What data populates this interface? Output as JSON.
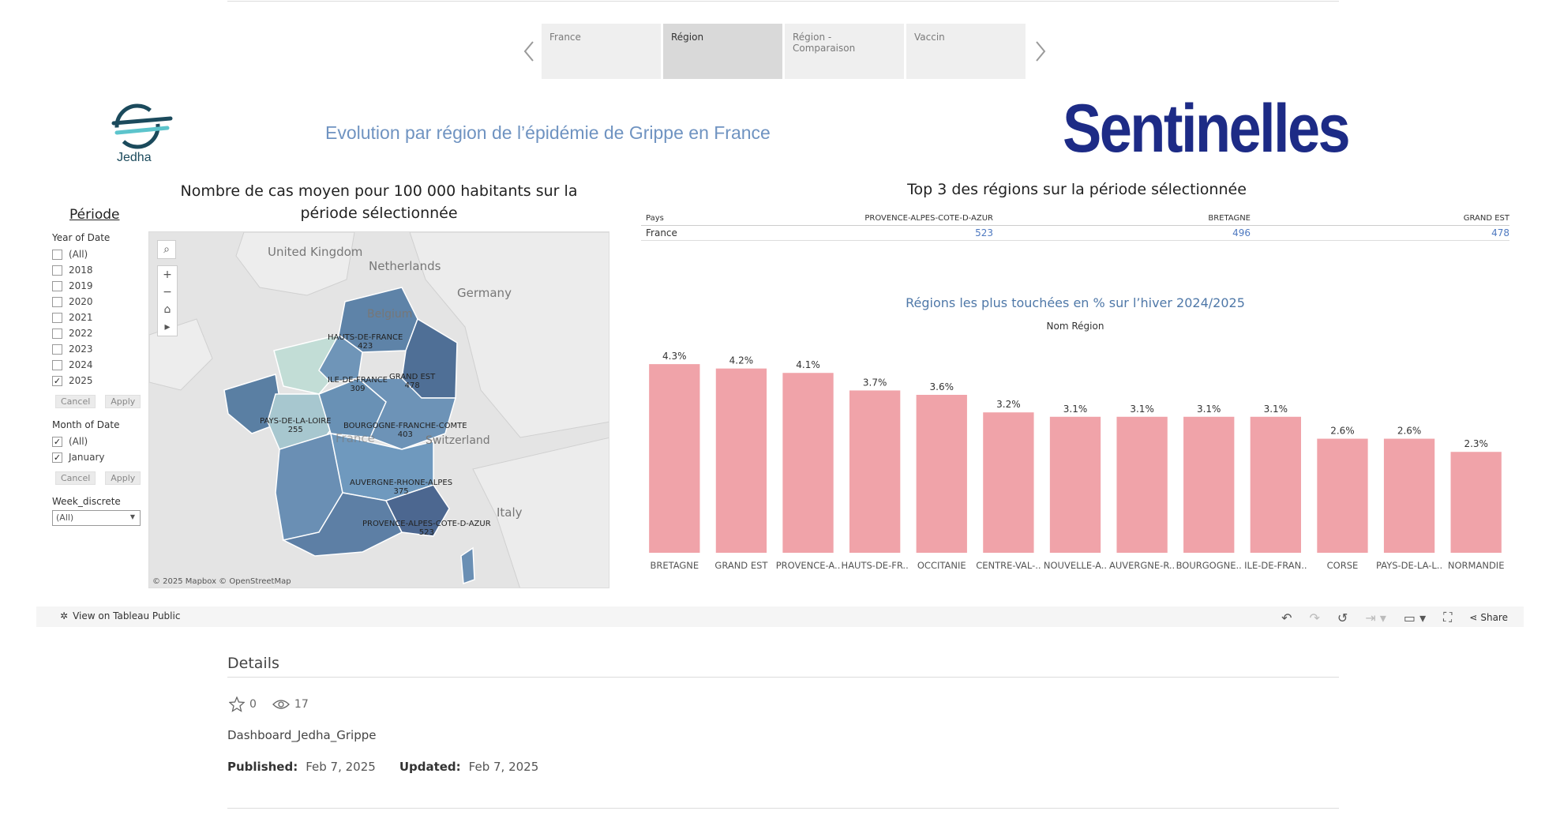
{
  "tabs": [
    {
      "label": "France"
    },
    {
      "label": "Région"
    },
    {
      "label": "Région - Comparaison"
    },
    {
      "label": "Vaccin"
    }
  ],
  "header": {
    "jedha_label": "Jedha",
    "title": "Evolution par région de l’épidémie de Grippe en France",
    "sentinelles_logo": "Sentinelles"
  },
  "filters": {
    "title": "Période",
    "year_label": "Year of Date",
    "years": [
      {
        "label": "(All)",
        "checked": false
      },
      {
        "label": "2018",
        "checked": false
      },
      {
        "label": "2019",
        "checked": false
      },
      {
        "label": "2020",
        "checked": false
      },
      {
        "label": "2021",
        "checked": false
      },
      {
        "label": "2022",
        "checked": false
      },
      {
        "label": "2023",
        "checked": false
      },
      {
        "label": "2024",
        "checked": false
      },
      {
        "label": "2025",
        "checked": true
      }
    ],
    "cancel": "Cancel",
    "apply": "Apply",
    "month_label": "Month of Date",
    "months": [
      {
        "label": "(All)",
        "checked": true
      },
      {
        "label": "January",
        "checked": true
      }
    ],
    "week_label": "Week_discrete",
    "week_value": "(All)"
  },
  "map": {
    "title": "Nombre de cas moyen pour 100 000 habitants sur la période sélectionnée",
    "countries": [
      "United Kingdom",
      "Netherlands",
      "Germany",
      "Belgium",
      "Switzerland",
      "Italy",
      "France"
    ],
    "regions": [
      {
        "name": "HAUTS-DE-FRANCE",
        "value": "423"
      },
      {
        "name": "GRAND EST",
        "value": "478"
      },
      {
        "name": "ILE-DE-FRANCE",
        "value": "309"
      },
      {
        "name": "PAYS-DE-LA-LOIRE",
        "value": "255"
      },
      {
        "name": "BOURGOGNE-FRANCHE-COMTE",
        "value": "403"
      },
      {
        "name": "AUVERGNE-RHONE-ALPES",
        "value": "375"
      },
      {
        "name": "PROVENCE-ALPES-COTE-D-AZUR",
        "value": "523"
      }
    ],
    "attribution": "© 2025 Mapbox  © OpenStreetMap"
  },
  "top3": {
    "title": "Top 3 des régions sur la période sélectionnée",
    "header": [
      "Pays",
      "PROVENCE-ALPES-COTE-D-AZUR",
      "BRETAGNE",
      "GRAND EST"
    ],
    "row": [
      "France",
      "523",
      "496",
      "478"
    ]
  },
  "chart_data": {
    "type": "bar",
    "title": "Régions les plus touchées en % sur l’hiver 2024/2025",
    "xlabel": "Nom Région",
    "categories": [
      "BRETAGNE",
      "GRAND EST",
      "PROVENCE-A..",
      "HAUTS-DE-FR..",
      "OCCITANIE",
      "CENTRE-VAL-..",
      "NOUVELLE-A..",
      "AUVERGNE-R..",
      "BOURGOGNE..",
      "ILE-DE-FRAN..",
      "CORSE",
      "PAYS-DE-LA-L..",
      "NORMANDIE"
    ],
    "values": [
      4.3,
      4.2,
      4.1,
      3.7,
      3.6,
      3.2,
      3.1,
      3.1,
      3.1,
      3.1,
      2.6,
      2.6,
      2.3
    ],
    "labels": [
      "4.3%",
      "4.2%",
      "4.1%",
      "3.7%",
      "3.6%",
      "3.2%",
      "3.1%",
      "3.1%",
      "3.1%",
      "3.1%",
      "2.6%",
      "2.6%",
      "2.3%"
    ],
    "ylim": [
      0,
      4.5
    ],
    "bar_color": "#f0a3a9"
  },
  "toolbar": {
    "view_on": "View on Tableau Public",
    "share": "Share"
  },
  "details": {
    "title": "Details",
    "favorites": "0",
    "views": "17",
    "workbook": "Dashboard_Jedha_Grippe",
    "published_label": "Published:",
    "published": "Feb 7, 2025",
    "updated_label": "Updated:",
    "updated": "Feb 7, 2025"
  }
}
